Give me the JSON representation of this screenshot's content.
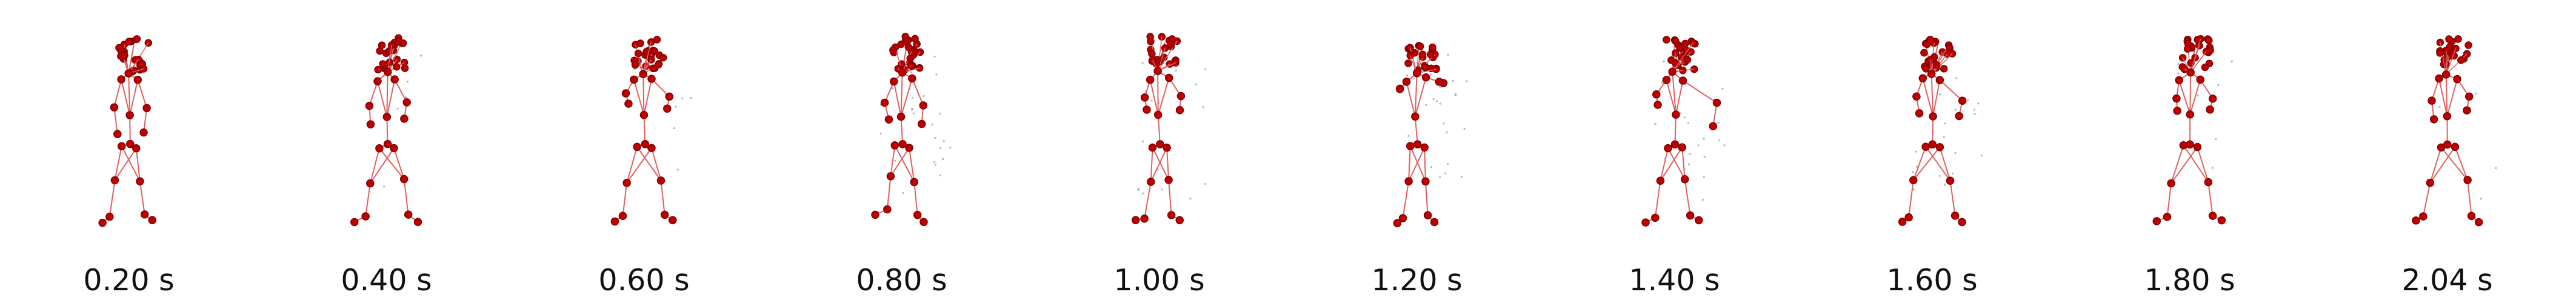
{
  "frames": [
    {
      "time_label": "0.20 s"
    },
    {
      "time_label": "0.40 s"
    },
    {
      "time_label": "0.60 s"
    },
    {
      "time_label": "0.80 s"
    },
    {
      "time_label": "1.00 s"
    },
    {
      "time_label": "1.20 s"
    },
    {
      "time_label": "1.40 s"
    },
    {
      "time_label": "1.60 s"
    },
    {
      "time_label": "1.80 s"
    },
    {
      "time_label": "2.04 s"
    }
  ],
  "colors": {
    "joint": "#c00000",
    "joint_outline": "#7a0000",
    "bone": "#e06060",
    "scatter": "#6e86a8",
    "label": "#111111",
    "background": "#ffffff"
  }
}
